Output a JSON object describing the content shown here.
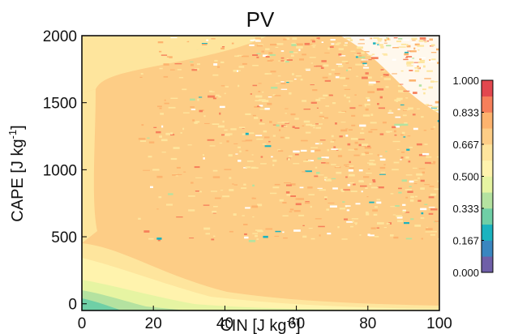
{
  "chart_data": {
    "type": "heatmap",
    "title": "PV",
    "xlabel": "CIN [J kg",
    "xlabel_sup": "-1",
    "xlabel_close": "]",
    "ylabel": "CAPE [J kg",
    "ylabel_sup": "-1",
    "ylabel_close": "]",
    "xlim": [
      0,
      100
    ],
    "ylim": [
      -50,
      2000
    ],
    "x_ticks": [
      0,
      20,
      40,
      60,
      80,
      100
    ],
    "y_ticks": [
      0,
      500,
      1000,
      1500,
      2000
    ],
    "z_range": [
      0,
      1
    ],
    "colorbar": {
      "tick_labels": [
        "0.000",
        "0.167",
        "0.333",
        "0.500",
        "0.667",
        "0.833",
        "1.000"
      ],
      "levels": [
        0,
        0.0833,
        0.1667,
        0.25,
        0.3333,
        0.4167,
        0.5,
        0.5833,
        0.6667,
        0.75,
        0.8333,
        0.9167,
        1.0
      ],
      "colors": [
        "#6f5fa8",
        "#3a86c0",
        "#1bb3bf",
        "#6fcfa6",
        "#b4e2a0",
        "#e6f4a2",
        "#fff3ad",
        "#fee59d",
        "#fdcd86",
        "#fdb36e",
        "#f67f5a",
        "#e2474e"
      ]
    },
    "field_description": {
      "background_level": 0.72,
      "upper_left_plateau": 0.64,
      "lower_band_low_values": [
        0.2,
        0.45,
        0.55
      ],
      "upper_right_noisy_region": [
        0.85,
        1.0
      ]
    }
  }
}
